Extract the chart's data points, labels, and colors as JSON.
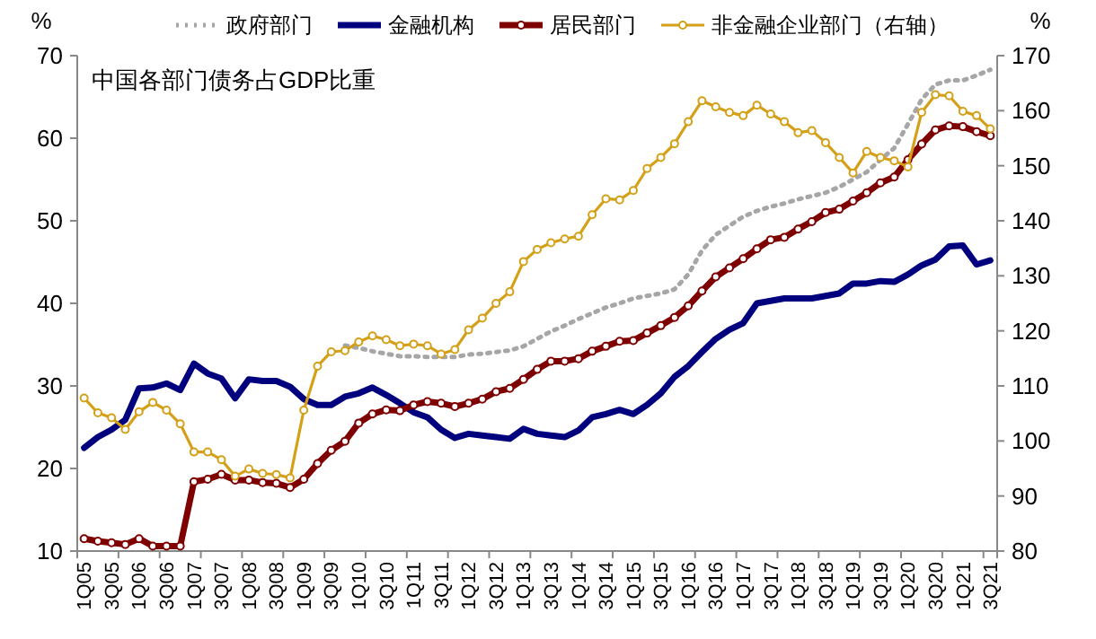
{
  "chart_data": {
    "type": "line",
    "title": "中国各部门债务占GDP比重",
    "ylabel": "%",
    "y2label": "%",
    "categories": [
      "1Q05",
      null,
      "3Q05",
      null,
      "1Q06",
      null,
      "3Q06",
      null,
      "1Q07",
      null,
      "3Q07",
      null,
      "1Q08",
      null,
      "3Q08",
      null,
      "1Q09",
      null,
      "3Q09",
      null,
      "1Q10",
      null,
      "3Q10",
      null,
      "1Q11",
      null,
      "3Q11",
      null,
      "1Q12",
      null,
      "3Q12",
      null,
      "1Q13",
      null,
      "3Q13",
      null,
      "1Q14",
      null,
      "3Q14",
      null,
      "1Q15",
      null,
      "3Q15",
      null,
      "1Q16",
      null,
      "3Q16",
      null,
      "1Q17",
      null,
      "3Q17",
      null,
      "1Q18",
      null,
      "3Q18",
      null,
      "1Q19",
      null,
      "3Q19",
      null,
      "1Q20",
      null,
      "3Q20",
      null,
      "1Q21",
      null,
      "3Q21"
    ],
    "series": [
      {
        "name": "政府部门",
        "color": "#a6a6a6",
        "line_style": "dotted",
        "marker": "none",
        "values": [
          null,
          null,
          null,
          null,
          null,
          null,
          null,
          null,
          null,
          null,
          null,
          null,
          null,
          null,
          null,
          null,
          null,
          null,
          null,
          34.9,
          34.6,
          34.2,
          33.9,
          33.6,
          33.6,
          33.5,
          33.5,
          33.5,
          33.8,
          33.9,
          34.1,
          34.3,
          34.8,
          35.7,
          36.6,
          37.3,
          38.1,
          38.8,
          39.5,
          40.0,
          40.6,
          40.9,
          41.2,
          41.7,
          43.5,
          46.4,
          48.3,
          49.4,
          50.5,
          51.2,
          51.7,
          52.1,
          52.6,
          53.0,
          53.4,
          54.1,
          55.0,
          55.9,
          57.4,
          58.8,
          61.7,
          64.7,
          66.5,
          67.0,
          67.0,
          67.6,
          68.3
        ]
      },
      {
        "name": "金融机构",
        "color": "#00007f",
        "line_style": "solid",
        "marker": "none",
        "values": [
          22.5,
          23.8,
          24.7,
          25.9,
          29.7,
          29.8,
          30.3,
          29.5,
          32.7,
          31.5,
          30.9,
          28.5,
          30.8,
          30.6,
          30.6,
          29.9,
          28.4,
          27.7,
          27.7,
          28.7,
          29.1,
          29.8,
          28.9,
          27.9,
          26.8,
          26.2,
          24.7,
          23.7,
          24.2,
          24.0,
          23.8,
          23.6,
          24.8,
          24.2,
          24.0,
          23.8,
          24.6,
          26.2,
          26.6,
          27.1,
          26.6,
          27.7,
          29.1,
          31.1,
          32.4,
          34.1,
          35.7,
          36.8,
          37.6,
          40.0,
          40.3,
          40.6,
          40.6,
          40.6,
          40.9,
          41.2,
          42.4,
          42.4,
          42.7,
          42.6,
          43.5,
          44.6,
          45.3,
          46.9,
          47.0,
          44.7,
          45.2
        ]
      },
      {
        "name": "居民部门",
        "color": "#7f0000",
        "line_style": "solid",
        "marker": "circle",
        "values": [
          11.5,
          11.2,
          11.0,
          10.8,
          11.5,
          10.6,
          10.6,
          10.6,
          18.4,
          18.7,
          19.3,
          18.6,
          18.6,
          18.3,
          18.2,
          17.7,
          18.7,
          20.6,
          22.2,
          23.3,
          25.5,
          26.6,
          27.1,
          27.0,
          27.7,
          28.1,
          27.9,
          27.5,
          27.9,
          28.4,
          29.3,
          29.7,
          30.8,
          32.0,
          33.0,
          33.0,
          33.3,
          34.2,
          34.8,
          35.4,
          35.5,
          36.4,
          37.3,
          38.3,
          39.7,
          41.5,
          43.2,
          44.3,
          45.4,
          46.6,
          47.7,
          48.0,
          49.0,
          49.9,
          51.0,
          51.4,
          52.4,
          53.4,
          54.6,
          55.3,
          57.4,
          59.3,
          61.0,
          61.5,
          61.4,
          60.8,
          60.3
        ]
      },
      {
        "name": "非金融企业部门（右轴）",
        "color": "#d4a017",
        "line_style": "solid",
        "marker": "circle",
        "axis": "y2",
        "values": [
          107.8,
          105.1,
          104.2,
          102.1,
          105.3,
          107.0,
          105.6,
          103.1,
          98.0,
          98.0,
          96.6,
          93.6,
          94.9,
          94.1,
          93.9,
          93.3,
          105.6,
          113.6,
          116.2,
          116.4,
          118.0,
          119.1,
          118.4,
          117.3,
          117.6,
          117.3,
          115.8,
          116.6,
          120.2,
          122.3,
          125.0,
          127.1,
          132.6,
          134.8,
          136.0,
          136.7,
          137.2,
          141.1,
          144.0,
          143.8,
          145.5,
          149.5,
          151.5,
          154.0,
          158.0,
          161.8,
          160.7,
          159.7,
          159.1,
          161.0,
          159.4,
          158.0,
          156.0,
          156.4,
          154.2,
          151.5,
          148.7,
          152.6,
          151.5,
          150.9,
          149.8,
          159.7,
          162.9,
          162.7,
          159.9,
          159.1,
          156.7
        ]
      }
    ],
    "ylim": [
      10,
      70
    ],
    "yticks": [
      10,
      20,
      30,
      40,
      50,
      60,
      70
    ],
    "y2lim": [
      80,
      170
    ],
    "y2ticks": [
      80,
      90,
      100,
      110,
      120,
      130,
      140,
      150,
      160,
      170
    ],
    "grid": false,
    "legend": "top"
  }
}
